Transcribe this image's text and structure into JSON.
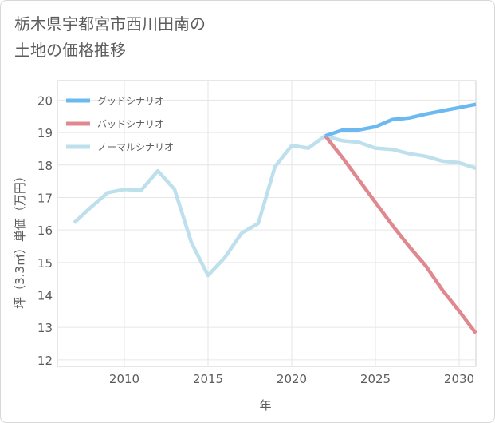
{
  "header": {
    "title_line1": "栃木県宇都宮市西川田南の",
    "title_line2": "土地の価格推移"
  },
  "chart_data": {
    "type": "line",
    "title": "栃木県宇都宮市西川田南の土地の価格推移",
    "xlabel": "年",
    "ylabel": "坪（3.3㎡）単価（万円）",
    "xlim": [
      2006,
      2031
    ],
    "ylim": [
      11.8,
      20.6
    ],
    "x_ticks": [
      2010,
      2015,
      2020,
      2025,
      2030
    ],
    "y_ticks": [
      12,
      13,
      14,
      15,
      16,
      17,
      18,
      19,
      20
    ],
    "grid": true,
    "legend_position": "top-left",
    "series": [
      {
        "name": "グッドシナリオ",
        "color": "#6bb9f0",
        "x": [
          2022,
          2023,
          2024,
          2025,
          2026,
          2027,
          2028,
          2029,
          2030,
          2031
        ],
        "values": [
          18.9,
          19.07,
          19.08,
          19.18,
          19.4,
          19.45,
          19.57,
          19.67,
          19.77,
          19.87
        ]
      },
      {
        "name": "バッドシナリオ",
        "color": "#e0888f",
        "x": [
          2022,
          2023,
          2024,
          2025,
          2026,
          2027,
          2028,
          2029,
          2030,
          2031
        ],
        "values": [
          18.9,
          18.25,
          17.55,
          16.85,
          16.15,
          15.5,
          14.9,
          14.15,
          13.5,
          12.82
        ]
      },
      {
        "name": "ノーマルシナリオ",
        "color": "#bde0ec",
        "x": [
          2007,
          2008,
          2009,
          2010,
          2011,
          2012,
          2013,
          2014,
          2015,
          2016,
          2017,
          2018,
          2019,
          2020,
          2021,
          2022,
          2023,
          2024,
          2025,
          2026,
          2027,
          2028,
          2029,
          2030,
          2031
        ],
        "values": [
          16.22,
          16.7,
          17.15,
          17.25,
          17.22,
          17.82,
          17.25,
          15.62,
          14.6,
          15.15,
          15.9,
          16.2,
          17.95,
          18.6,
          18.52,
          18.9,
          18.75,
          18.7,
          18.52,
          18.48,
          18.35,
          18.27,
          18.12,
          18.07,
          17.9
        ]
      }
    ]
  }
}
